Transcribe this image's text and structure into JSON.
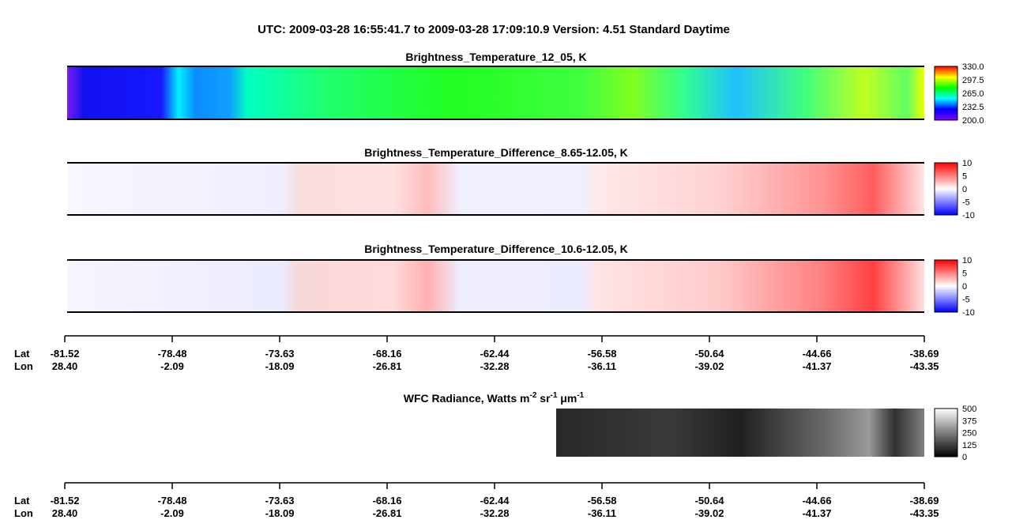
{
  "header": {
    "title": "UTC:  2009-03-28   16:55:41.7  to  2009-03-28   17:09:10.9    Version: 4.51  Standard Daytime"
  },
  "panels": [
    {
      "title": "Brightness_Temperature_12_05, K",
      "colorbar_ticks": [
        "330.0",
        "297.5",
        "265.0",
        "232.5",
        "200.0"
      ]
    },
    {
      "title": "Brightness_Temperature_Difference_8.65-12.05, K",
      "colorbar_ticks": [
        "10",
        "5",
        "0",
        "-5",
        "-10"
      ]
    },
    {
      "title": "Brightness_Temperature_Difference_10.6-12.05, K",
      "colorbar_ticks": [
        "10",
        "5",
        "0",
        "-5",
        "-10"
      ]
    },
    {
      "title_parts": [
        "WFC Radiance, Watts m",
        "-2",
        " sr",
        "-1",
        " μm",
        "-1"
      ],
      "colorbar_ticks": [
        "500",
        "375",
        "250",
        "125",
        "0"
      ]
    }
  ],
  "axes": [
    {
      "lat_label": "Lat",
      "lon_label": "Lon",
      "lat": [
        "-81.52",
        "-78.48",
        "-73.63",
        "-68.16",
        "-62.44",
        "-56.58",
        "-50.64",
        "-44.66",
        "-38.69"
      ],
      "lon": [
        "28.40",
        "-2.09",
        "-18.09",
        "-26.81",
        "-32.28",
        "-36.11",
        "-39.02",
        "-41.37",
        "-43.35"
      ]
    },
    {
      "lat_label": "Lat",
      "lon_label": "Lon",
      "lat": [
        "-81.52",
        "-78.48",
        "-73.63",
        "-68.16",
        "-62.44",
        "-56.58",
        "-50.64",
        "-44.66",
        "-38.69"
      ],
      "lon": [
        "28.40",
        "-2.09",
        "-18.09",
        "-26.81",
        "-32.28",
        "-36.11",
        "-39.02",
        "-41.37",
        "-43.35"
      ]
    }
  ]
}
